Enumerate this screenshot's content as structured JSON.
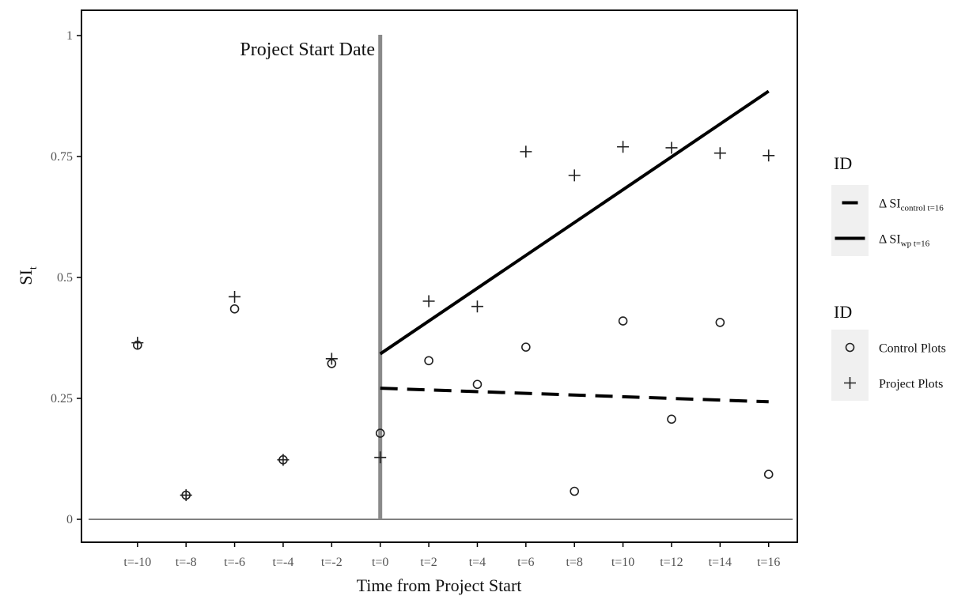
{
  "chart_data": {
    "type": "scatter",
    "xlabel": "Time from Project Start",
    "ylabel": "SI",
    "ylabel_subscript": "t",
    "annotation": "Project Start Date",
    "x_ticks": [
      "t=-10",
      "t=-8",
      "t=-6",
      "t=-4",
      "t=-2",
      "t=0",
      "t=2",
      "t=4",
      "t=6",
      "t=8",
      "t=10",
      "t=12",
      "t=14",
      "t=16"
    ],
    "x_tick_values": [
      -10,
      -8,
      -6,
      -4,
      -2,
      0,
      2,
      4,
      6,
      8,
      10,
      12,
      14,
      16
    ],
    "y_ticks": [
      "0",
      "0.25",
      "0.5",
      "0.75",
      "1"
    ],
    "y_tick_values": [
      0,
      0.25,
      0.5,
      0.75,
      1
    ],
    "xlim": [
      -12,
      17
    ],
    "ylim": [
      -0.05,
      1.05
    ],
    "reference_lines": {
      "horizontal_y": 0,
      "vertical_x": 0
    },
    "series": [
      {
        "name": "Control Plots",
        "marker": "circle",
        "points": [
          [
            -10,
            0.36
          ],
          [
            -8,
            0.05
          ],
          [
            -6,
            0.435
          ],
          [
            -4,
            0.123
          ],
          [
            -2,
            0.322
          ],
          [
            0,
            0.178
          ],
          [
            2,
            0.328
          ],
          [
            4,
            0.279
          ],
          [
            6,
            0.356
          ],
          [
            8,
            0.058
          ],
          [
            10,
            0.41
          ],
          [
            12,
            0.207
          ],
          [
            14,
            0.407
          ],
          [
            16,
            0.093
          ]
        ]
      },
      {
        "name": "Project Plots",
        "marker": "plus",
        "points": [
          [
            -10,
            0.365
          ],
          [
            -8,
            0.05
          ],
          [
            -6,
            0.46
          ],
          [
            -4,
            0.123
          ],
          [
            -2,
            0.332
          ],
          [
            0,
            0.128
          ],
          [
            2,
            0.451
          ],
          [
            4,
            0.44
          ],
          [
            6,
            0.76
          ],
          [
            8,
            0.711
          ],
          [
            10,
            0.77
          ],
          [
            12,
            0.768
          ],
          [
            14,
            0.757
          ],
          [
            16,
            0.752
          ]
        ]
      }
    ],
    "trend_lines": [
      {
        "name": "Δ SI",
        "name_subscript": "control t=16",
        "style": "dashed",
        "from": [
          0,
          0.271
        ],
        "to": [
          16,
          0.243
        ]
      },
      {
        "name": "Δ SI",
        "name_subscript": "wp t=16",
        "style": "solid",
        "from": [
          0,
          0.342
        ],
        "to": [
          16,
          0.885
        ]
      }
    ],
    "legends": [
      {
        "title": "ID",
        "items": [
          {
            "label": "Δ SI",
            "subscript": "control t=16",
            "style": "dashed"
          },
          {
            "label": "Δ SI",
            "subscript": "wp t=16",
            "style": "solid"
          }
        ]
      },
      {
        "title": "ID",
        "items": [
          {
            "label": "Control Plots",
            "marker": "circle"
          },
          {
            "label": "Project Plots",
            "marker": "plus"
          }
        ]
      }
    ],
    "legend_position": "right",
    "grid": false,
    "colors": {
      "points": "#222222",
      "lines": "#000000",
      "vertical_line": "#8a8a8a",
      "legend_bg": "#f0f0f0"
    }
  }
}
